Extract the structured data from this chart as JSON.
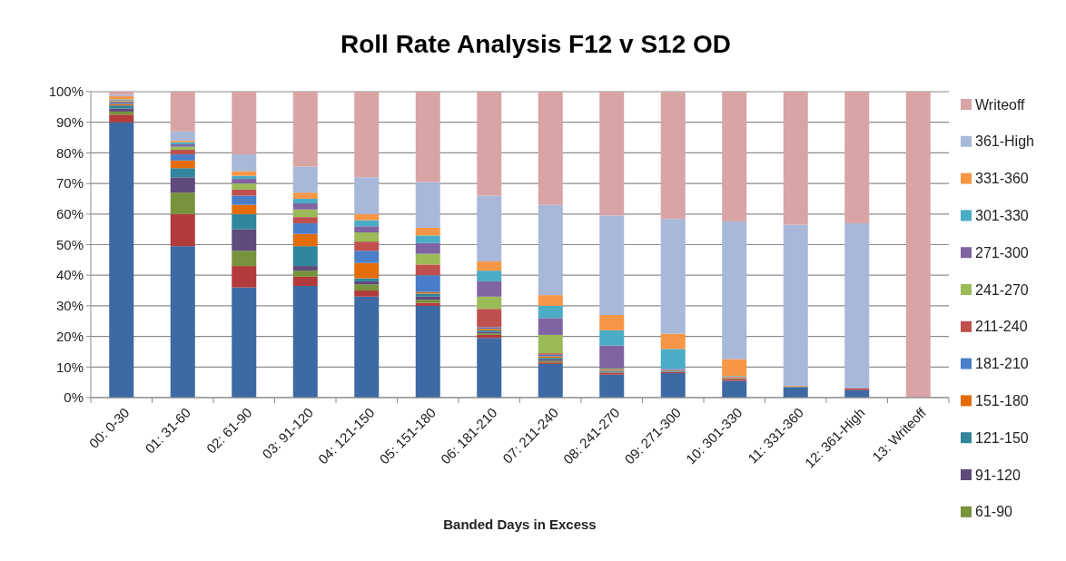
{
  "chart_data": {
    "type": "bar",
    "stacked": true,
    "title": "Roll Rate Analysis  F12 v S12 OD",
    "xlabel": "Banded Days in Excess",
    "categories": [
      "00: 0-30",
      "01: 31-60",
      "02: 61-90",
      "03: 91-120",
      "04: 121-150",
      "05: 151-180",
      "06: 181-210",
      "07: 211-240",
      "08: 241-270",
      "09: 271-300",
      "10: 301-330",
      "11: 331-360",
      "12: 361-High",
      "13: Writeoff"
    ],
    "ylim": [
      0,
      100
    ],
    "yticks": [
      {
        "value": 0,
        "label": "0%"
      },
      {
        "value": 10,
        "label": "10%"
      },
      {
        "value": 20,
        "label": "20%"
      },
      {
        "value": 30,
        "label": "30%"
      },
      {
        "value": 40,
        "label": "40%"
      },
      {
        "value": 50,
        "label": "50%"
      },
      {
        "value": 60,
        "label": "60%"
      },
      {
        "value": 70,
        "label": "70%"
      },
      {
        "value": 80,
        "label": "80%"
      },
      {
        "value": 90,
        "label": "90%"
      },
      {
        "value": 100,
        "label": "100%"
      }
    ],
    "grid": "y",
    "legend": "right",
    "series": [
      {
        "color": "#3d69a4",
        "values": [
          90,
          49.5,
          36,
          36.5,
          33,
          30,
          19.5,
          11,
          7.5,
          8,
          5.5,
          3.5,
          2.5,
          0
        ]
      },
      {
        "color": "#b33b3b",
        "values": [
          2.5,
          10.5,
          7,
          3,
          2,
          1,
          1,
          0.5,
          0.5,
          0.3,
          0.5,
          0,
          0.5,
          0
        ]
      },
      {
        "name": "61-90",
        "color": "#77933c",
        "values": [
          1,
          7,
          5,
          2,
          2,
          1,
          0.5,
          0.5,
          0.2,
          0.1,
          0.1,
          0,
          0,
          0
        ]
      },
      {
        "name": "91-120",
        "color": "#604a7b",
        "values": [
          1,
          5,
          7,
          1.5,
          1,
          1,
          0.5,
          0.5,
          0.2,
          0.1,
          0.1,
          0,
          0,
          0
        ]
      },
      {
        "name": "121-150",
        "color": "#31859c",
        "values": [
          1,
          3,
          5,
          6.5,
          1,
          1,
          0.5,
          0.5,
          0.2,
          0.3,
          0.1,
          0,
          0,
          0
        ]
      },
      {
        "name": "151-180",
        "color": "#e46c0a",
        "values": [
          0.5,
          2.5,
          3,
          4,
          5,
          0.5,
          0.5,
          0.5,
          0.2,
          0.1,
          0.3,
          0,
          0,
          0
        ]
      },
      {
        "name": "181-210",
        "color": "#4a7ec9",
        "values": [
          0.5,
          2,
          3,
          3.5,
          4,
          5.5,
          0.5,
          0.5,
          0.2,
          0.1,
          0.1,
          0,
          0,
          0
        ]
      },
      {
        "name": "211-240",
        "color": "#c0504d",
        "values": [
          0.3,
          1.5,
          2,
          2,
          3,
          3.5,
          6,
          0.5,
          0.2,
          0.1,
          0.1,
          0,
          0,
          0
        ]
      },
      {
        "name": "241-270",
        "color": "#9bbb59",
        "values": [
          0.3,
          1,
          2,
          2.5,
          3,
          3.5,
          4,
          6,
          0.3,
          null,
          0.1,
          0,
          0,
          0
        ]
      },
      {
        "name": "271-300",
        "color": "#8064a2",
        "values": [
          0.2,
          0.8,
          1.5,
          2,
          2,
          3.5,
          5,
          5.5,
          7.5,
          0.3,
          0.1,
          0,
          0,
          0
        ]
      },
      {
        "name": "301-330",
        "color": "#4bacc6",
        "values": [
          0.2,
          0.7,
          1,
          1.5,
          2,
          2.5,
          3.5,
          4,
          5,
          6.5,
          0.1,
          0,
          0,
          0
        ]
      },
      {
        "name": "331-360",
        "color": "#f79646",
        "values": [
          1,
          0.5,
          1.5,
          2,
          2,
          2.5,
          3,
          3.5,
          5,
          5,
          5.5,
          0.3,
          0,
          0
        ]
      },
      {
        "name": "361-High",
        "color": "#a8b8d8",
        "values": [
          0.5,
          3,
          5.5,
          8.5,
          12,
          15,
          21.5,
          29.5,
          32.5,
          37.5,
          45,
          52.7,
          54,
          0
        ]
      },
      {
        "name": "Writeoff",
        "color": "#d8a4a6",
        "values": [
          1,
          13,
          20.5,
          24.5,
          28,
          29.5,
          34,
          37,
          40.5,
          41.5,
          42.4,
          43.5,
          43,
          100
        ]
      }
    ]
  }
}
